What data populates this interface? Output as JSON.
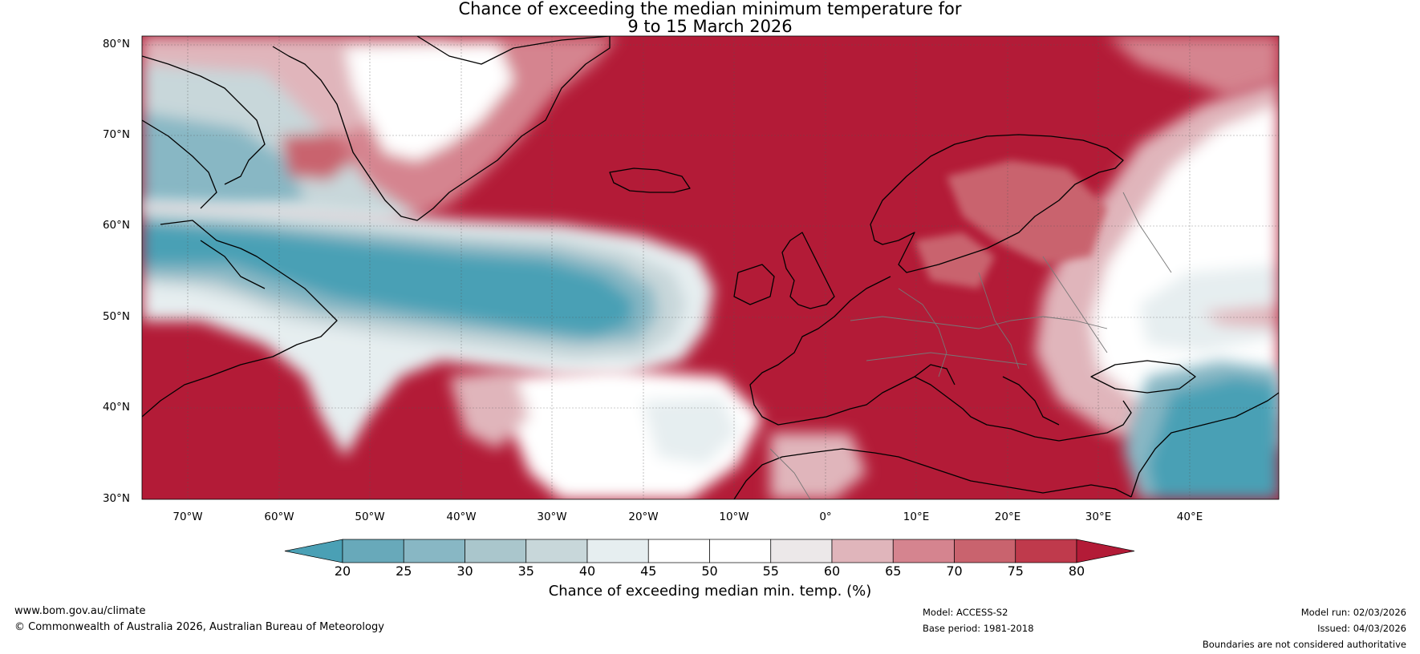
{
  "title_line1": "Chance of exceeding the median minimum temperature for",
  "title_line2": "9 to 15 March 2026",
  "latitude_labels": [
    "80°N",
    "70°N",
    "60°N",
    "50°N",
    "40°N",
    "30°N"
  ],
  "longitude_labels": [
    "70°W",
    "60°W",
    "50°W",
    "40°W",
    "30°W",
    "20°W",
    "10°W",
    "0°",
    "10°E",
    "20°E",
    "30°E",
    "40°E"
  ],
  "colorbar": {
    "ticks": [
      "20",
      "25",
      "30",
      "35",
      "40",
      "45",
      "50",
      "55",
      "60",
      "65",
      "70",
      "75",
      "80"
    ],
    "colors": [
      "#4aa0b5",
      "#68a9ba",
      "#88b7c4",
      "#aac6cc",
      "#c8d7da",
      "#e6eef0",
      "#ffffff",
      "#ffffff",
      "#ece8e9",
      "#e0b5bb",
      "#d5848f",
      "#c9636e",
      "#bf3a4c",
      "#b31b37"
    ],
    "label": "Chance of exceeding median min. temp. (%)"
  },
  "colors": {
    "cold": "#4aa0b5",
    "warm": "#b31b37",
    "neutral": "#ffffff"
  },
  "footer": {
    "website": "www.bom.gov.au/climate",
    "copyright": "© Commonwealth of Australia 2026, Australian Bureau of Meteorology",
    "model": "Model: ACCESS-S2",
    "base_period": "Base period: 1981-2018",
    "model_run": "Model run: 02/03/2026",
    "issued": "Issued: 04/03/2026",
    "disclaimer": "Boundaries are not considered authoritative"
  }
}
